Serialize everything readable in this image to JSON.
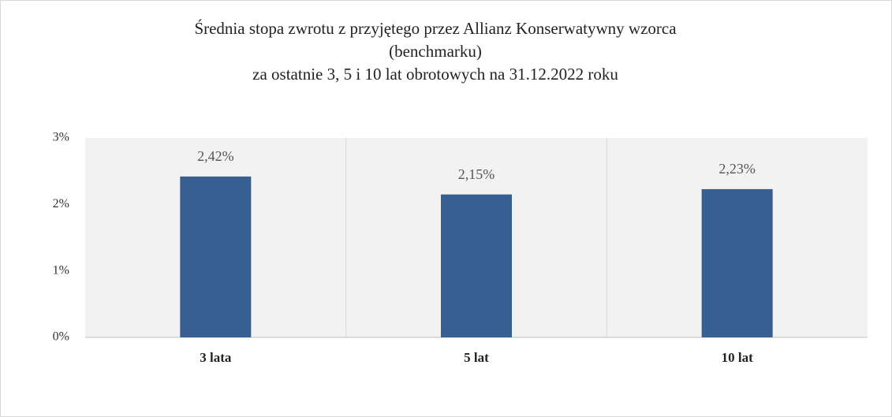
{
  "chart_data": {
    "type": "bar",
    "title": [
      "Średnia stopa zwrotu z przyjętego przez Allianz Konserwatywny wzorca",
      "(benchmarku)",
      "za ostatnie 3, 5 i 10 lat obrotowych na 31.12.2022 roku"
    ],
    "categories": [
      "3 lata",
      "5 lat",
      "10 lat"
    ],
    "values": [
      2.42,
      2.15,
      2.23
    ],
    "value_labels": [
      "2,42%",
      "2,15%",
      "2,23%"
    ],
    "color": "#375f91",
    "ylim": [
      0,
      3
    ],
    "yticks": [
      {
        "value": 0,
        "label": "0%"
      },
      {
        "value": 1,
        "label": "1%"
      },
      {
        "value": 2,
        "label": "2%"
      },
      {
        "value": 3,
        "label": "3%"
      }
    ],
    "grid": false
  }
}
